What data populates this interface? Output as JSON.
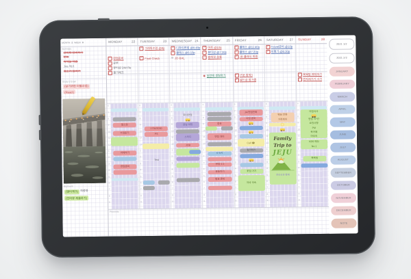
{
  "planner": {
    "header": {
      "month_label": "MONTH",
      "month_value": "2",
      "week_label": "WEEK",
      "week_value": "9"
    },
    "sidebar": {
      "summary_label": "Summary",
      "summary_items": [
        {
          "text": "강의록 정리하기",
          "struck": true
        },
        {
          "text": "운동",
          "struck": true
        },
        {
          "text": "숙제들 제출",
          "struck": true
        },
        {
          "text": "Jira 체크",
          "struck": false
        },
        {
          "text": "청소기 돌리기",
          "struck": true
        }
      ],
      "study_label": "Study & Exam",
      "study_items": [
        "(살기위한 이별수업)",
        "(React)"
      ],
      "big_event_label": "Big Event",
      "big_event_items": [
        {
          "highlight": "(멀티체크)",
          "rest": " 최종뷰"
        },
        {
          "highlight": "(인터뷰 제출하기)",
          "rest": ""
        }
      ]
    },
    "hours": [
      "6",
      "7",
      "8",
      "9",
      "10",
      "11",
      "12",
      "1",
      "2",
      "3",
      "4",
      "5",
      "6",
      "7",
      "8",
      "9"
    ],
    "freenote_label": "Freenote",
    "jeju": {
      "line1": "Family",
      "line2": "Trip to",
      "line3": "JEJU",
      "caption": "한라산과 함께"
    },
    "palette": {
      "band": "#dcd7ee",
      "red": "#e9999c",
      "gray": "#a9a9ad",
      "purple": "#b4a6d8",
      "green": "#c5e79e",
      "blue": "#84a9de",
      "lblue": "#a6c8e4",
      "cyan": "#cfe9f3",
      "yellow": "#f4eda8",
      "peach": "#f4d0b0"
    },
    "palette_fg": {
      "red": "#8f4243",
      "gray": "#5f5f64",
      "purple": "#675a92",
      "green": "#53792a",
      "blue": "#2f4d84",
      "lblue": "#44688a",
      "yellow": "#877b36",
      "peach": "#95653e",
      "text": "#6b6b70"
    },
    "days": [
      {
        "name": "MONDAY",
        "date": "22",
        "accent": false,
        "todos": [
          {
            "row": 2,
            "color": "red",
            "text": "면접준비",
            "underline": true
          },
          {
            "row": 3,
            "color": "dark",
            "text": "공부"
          },
          {
            "row": 4,
            "color": "dark",
            "text": "뷰티샵 DW Re"
          },
          {
            "row": 5,
            "color": "dark",
            "text": "필기체크"
          }
        ],
        "todos2": [],
        "events": [
          {
            "t": 4.5,
            "h": 3,
            "c": "cyan",
            "w": "f"
          },
          {
            "t": 13,
            "h": 4,
            "c": "gray"
          },
          {
            "t": 18,
            "h": 4.5,
            "c": "red",
            "l": "헬스장"
          },
          {
            "t": 26,
            "h": 4.5,
            "c": "red",
            "l": "수업듣기"
          },
          {
            "t": 31.5,
            "h": 9,
            "c": "green",
            "w": "f"
          },
          {
            "t": 45,
            "h": 4.5,
            "c": "red",
            "l": "과제하기"
          },
          {
            "t": 50.5,
            "h": 4,
            "c": "lblue"
          },
          {
            "t": 58,
            "h": 4.5,
            "c": "red",
            "l": "면접준비"
          },
          {
            "t": 63,
            "h": 4.5,
            "c": "red"
          },
          {
            "t": 70.5,
            "h": 3,
            "c": "cyan",
            "w": "f"
          }
        ]
      },
      {
        "name": "TUESDAY",
        "date": "23",
        "accent": false,
        "todos": [
          {
            "row": 0,
            "color": "red",
            "text": "그래픽수업 @8p",
            "underline": true
          },
          {
            "row": 2,
            "color": "red",
            "text": "Final Check",
            "underline": true
          }
        ],
        "todos2": [],
        "events": [
          {
            "t": 4.5,
            "h": 3,
            "c": "cyan",
            "w": "f"
          },
          {
            "t": 22,
            "h": 4.5,
            "c": "red",
            "l": "1730/2030"
          },
          {
            "t": 27,
            "h": 4.5,
            "c": "red",
            "l": "PS"
          },
          {
            "t": 38.5,
            "h": 5,
            "c": "yellow",
            "w": "f"
          },
          {
            "t": 52,
            "h": 4,
            "c": "text",
            "l": "Test"
          },
          {
            "t": 73.5,
            "h": 4,
            "c": "lblue",
            "w": "hl"
          },
          {
            "t": 73.5,
            "h": 4,
            "c": "gray",
            "w": "hr"
          },
          {
            "t": 78.5,
            "h": 4,
            "c": "gray",
            "w": "hl"
          }
        ]
      },
      {
        "name": "WEDNESDAY",
        "date": "24",
        "accent": false,
        "todos": [
          {
            "row": 0,
            "color": "blue",
            "text": "디자인면접 @6:40p",
            "underline": true
          },
          {
            "row": 1,
            "color": "blue",
            "text": "클래스 @6:10p",
            "underline": true
          },
          {
            "row": 2,
            "color": "red",
            "text": "JO-BAL",
            "underline": true,
            "icon": "circle"
          }
        ],
        "todos2": [],
        "events": [
          {
            "t": 4.5,
            "h": 3,
            "c": "cyan",
            "w": "f"
          },
          {
            "t": 10.5,
            "h": 3.5,
            "c": "text",
            "l": "회사면접"
          },
          {
            "t": 14.5,
            "h": 3,
            "c": "text",
            "i": "car"
          },
          {
            "t": 18,
            "h": 6,
            "c": "purple",
            "l": "강남 미팅"
          },
          {
            "t": 25,
            "h": 4,
            "c": "gray"
          },
          {
            "t": 29.5,
            "h": 7,
            "c": "purple",
            "l": "스터디"
          },
          {
            "t": 38,
            "h": 4,
            "c": "red",
            "l": "JOB"
          },
          {
            "t": 43.5,
            "h": 6.5,
            "c": "green"
          },
          {
            "t": 45,
            "h": 3.5,
            "c": "blue",
            "w": "hr"
          },
          {
            "t": 51.5,
            "h": 4,
            "c": "purple"
          },
          {
            "t": 57,
            "h": 5,
            "c": "green"
          },
          {
            "t": 71.5,
            "h": 4,
            "c": "gray"
          }
        ]
      },
      {
        "name": "THURSDAY",
        "date": "25",
        "accent": false,
        "todos": [
          {
            "row": 0,
            "color": "red",
            "text": "마트 @10a",
            "underline": true
          },
          {
            "row": 1,
            "color": "blue",
            "text": "뷰티샵 @7:30p",
            "underline": true
          },
          {
            "row": 2,
            "color": "red",
            "text": "발레핏 운동",
            "underline": true
          }
        ],
        "todos2": [
          {
            "row": 0,
            "color": "green",
            "text": "실전에 셋팅하기",
            "underline": true,
            "icon": "circle-red"
          }
        ],
        "events": [
          {
            "t": 4.5,
            "h": 3,
            "c": "cyan",
            "w": "f"
          },
          {
            "t": 9,
            "h": 4,
            "c": "gray"
          },
          {
            "t": 13.5,
            "h": 4,
            "c": "gray"
          },
          {
            "t": 18.5,
            "h": 4,
            "c": "red",
            "l": "점심"
          },
          {
            "t": 23,
            "h": 3.5,
            "c": "green",
            "w": "hl"
          },
          {
            "t": 23,
            "h": 3.5,
            "c": "gray",
            "w": "hr"
          },
          {
            "t": 29,
            "h": 7,
            "c": "red",
            "l": "면접 대비"
          },
          {
            "t": 37.5,
            "h": 4,
            "c": "gray"
          },
          {
            "t": 42,
            "h": 4,
            "c": "yellow",
            "w": "f"
          },
          {
            "t": 46.5,
            "h": 4,
            "c": "lblue",
            "l": "5~6시"
          },
          {
            "t": 52,
            "h": 4,
            "c": "red"
          },
          {
            "t": 57,
            "h": 4,
            "c": "red",
            "l": "면접 1:1"
          },
          {
            "t": 64,
            "h": 4,
            "c": "red",
            "l": "운동하기"
          },
          {
            "t": 70.5,
            "h": 5,
            "c": "red",
            "l": "발표 준비"
          },
          {
            "t": 79,
            "h": 4,
            "c": "red"
          }
        ]
      },
      {
        "name": "FRIDAY",
        "date": "26",
        "accent": false,
        "todos": [
          {
            "row": 0,
            "color": "blue",
            "text": "클래스 @11:40a",
            "underline": true
          },
          {
            "row": 1,
            "color": "blue",
            "text": "클래스 @7:20p",
            "underline": true
          },
          {
            "row": 2,
            "color": "red",
            "text": "JR 클래식 지원",
            "underline": true
          }
        ],
        "todos2": [
          {
            "row": 0,
            "color": "red",
            "text": "구운 참외3",
            "underline": true
          },
          {
            "row": 1,
            "color": "red",
            "text": "골드샵 참가증",
            "underline": true
          }
        ],
        "events": [
          {
            "t": 4.5,
            "h": 3,
            "c": "cyan",
            "w": "f"
          },
          {
            "t": 7,
            "h": 6,
            "c": "red",
            "l": "JA/면접전화"
          },
          {
            "t": 14,
            "h": 4,
            "c": "red",
            "l": "아침 준비"
          },
          {
            "t": 18.5,
            "h": 3,
            "c": "text",
            "i": "car"
          },
          {
            "t": 22.5,
            "h": 4,
            "c": "blue"
          },
          {
            "t": 27,
            "h": 3,
            "c": "text",
            "i": "car"
          },
          {
            "t": 30.5,
            "h": 4,
            "c": "lblue"
          },
          {
            "t": 35,
            "h": 7.5,
            "c": "yellow",
            "w": "f",
            "l": "Call ☎"
          },
          {
            "t": 44,
            "h": 4,
            "c": "gray",
            "l": "필라테스"
          },
          {
            "t": 49.5,
            "h": 4,
            "c": "blue"
          },
          {
            "t": 53.5,
            "h": 3,
            "c": "text",
            "i": "car"
          },
          {
            "t": 58,
            "h": 4,
            "c": "lblue"
          },
          {
            "t": 63.5,
            "h": 5,
            "c": "green",
            "l": "꽃집 가기"
          },
          {
            "t": 69.5,
            "h": 15,
            "c": "green",
            "w": "f",
            "l": "저녁 약속"
          }
        ]
      },
      {
        "name": "SATURDAY",
        "date": "27",
        "accent": false,
        "todos": [
          {
            "row": 0,
            "color": "blue",
            "text": "Travel준비 @10p",
            "underline": true
          },
          {
            "row": 1,
            "color": "blue",
            "text": "비행기 @6:30p",
            "underline": true
          }
        ],
        "todos2": [],
        "events": [
          {
            "t": 4.5,
            "h": 3,
            "c": "cyan",
            "w": "f"
          },
          {
            "t": 10.5,
            "h": 8,
            "c": "peach",
            "lines": [
              "웨딩 전화",
              "가족회의"
            ]
          },
          {
            "t": 20,
            "h": 3.5,
            "c": "yellow",
            "w": "f",
            "i": "sun"
          },
          {
            "t": 25,
            "h": 3,
            "c": "text",
            "i": "car"
          },
          {
            "t": 29,
            "h": 47,
            "c": "green",
            "w": "f",
            "special": "jeju"
          }
        ]
      },
      {
        "name": "SUNDAY",
        "date": "28",
        "accent": true,
        "todos": [],
        "todos2": [
          {
            "row": 0,
            "color": "red",
            "text": "목욕탕 예약하기",
            "underline": true
          },
          {
            "row": 1,
            "color": "red",
            "text": "먼지제거기 사기",
            "underline": true
          }
        ],
        "events": [
          {
            "t": 4.5,
            "h": 3,
            "c": "cyan",
            "w": "f"
          },
          {
            "t": 7.5,
            "h": 27,
            "c": "green",
            "w": "f",
            "lines": [
              "아침식사",
              "@car",
              "면접 YP간",
              "요청사항",
              "PM",
              "북카페",
              "마무리"
            ]
          },
          {
            "t": 36.5,
            "h": 8,
            "c": "green",
            "w": "f",
            "lines": [
              "KBS 예능",
              "No.1"
            ]
          },
          {
            "t": 52,
            "h": 5,
            "c": "green",
            "l": "목욕탕"
          },
          {
            "t": 59,
            "h": 4,
            "c": "blue",
            "w": "f"
          }
        ]
      }
    ],
    "tabs": [
      {
        "label": "2021 1/2",
        "bg": "#ffffff",
        "white": true
      },
      {
        "label": "2021 2/2",
        "bg": "#ffffff",
        "white": true
      },
      {
        "label": "JANUARY",
        "bg": "#f2d3d3"
      },
      {
        "label": "FEBRUARY",
        "bg": "#f0cfd8"
      },
      {
        "label": "MARCH",
        "bg": "#c9cde6"
      },
      {
        "label": "APRIL",
        "bg": "#bfd1e8"
      },
      {
        "label": "MAY",
        "bg": "#b3c8e6"
      },
      {
        "label": "JUNE",
        "bg": "#a5bde0"
      },
      {
        "label": "JULY",
        "bg": "#afc4e3"
      },
      {
        "label": "AUGUST",
        "bg": "#bccee7"
      },
      {
        "label": "SEPTEMBER",
        "bg": "#c5cfe0"
      },
      {
        "label": "OCTOBER",
        "bg": "#cbcbe4"
      },
      {
        "label": "NOVEMBER",
        "bg": "#f0d0d8"
      },
      {
        "label": "DECEMBER",
        "bg": "#eecfcf"
      },
      {
        "label": "NOTE",
        "bg": "#e4c4b8"
      }
    ],
    "icons": {
      "car": "small yellow car glyph (css shape)",
      "sun": "small sun circle (css shape)",
      "checkbox": "red square with check ✓",
      "volcano": "green Hallasan mountain drawing",
      "pen": "yellow marker sticker"
    }
  }
}
